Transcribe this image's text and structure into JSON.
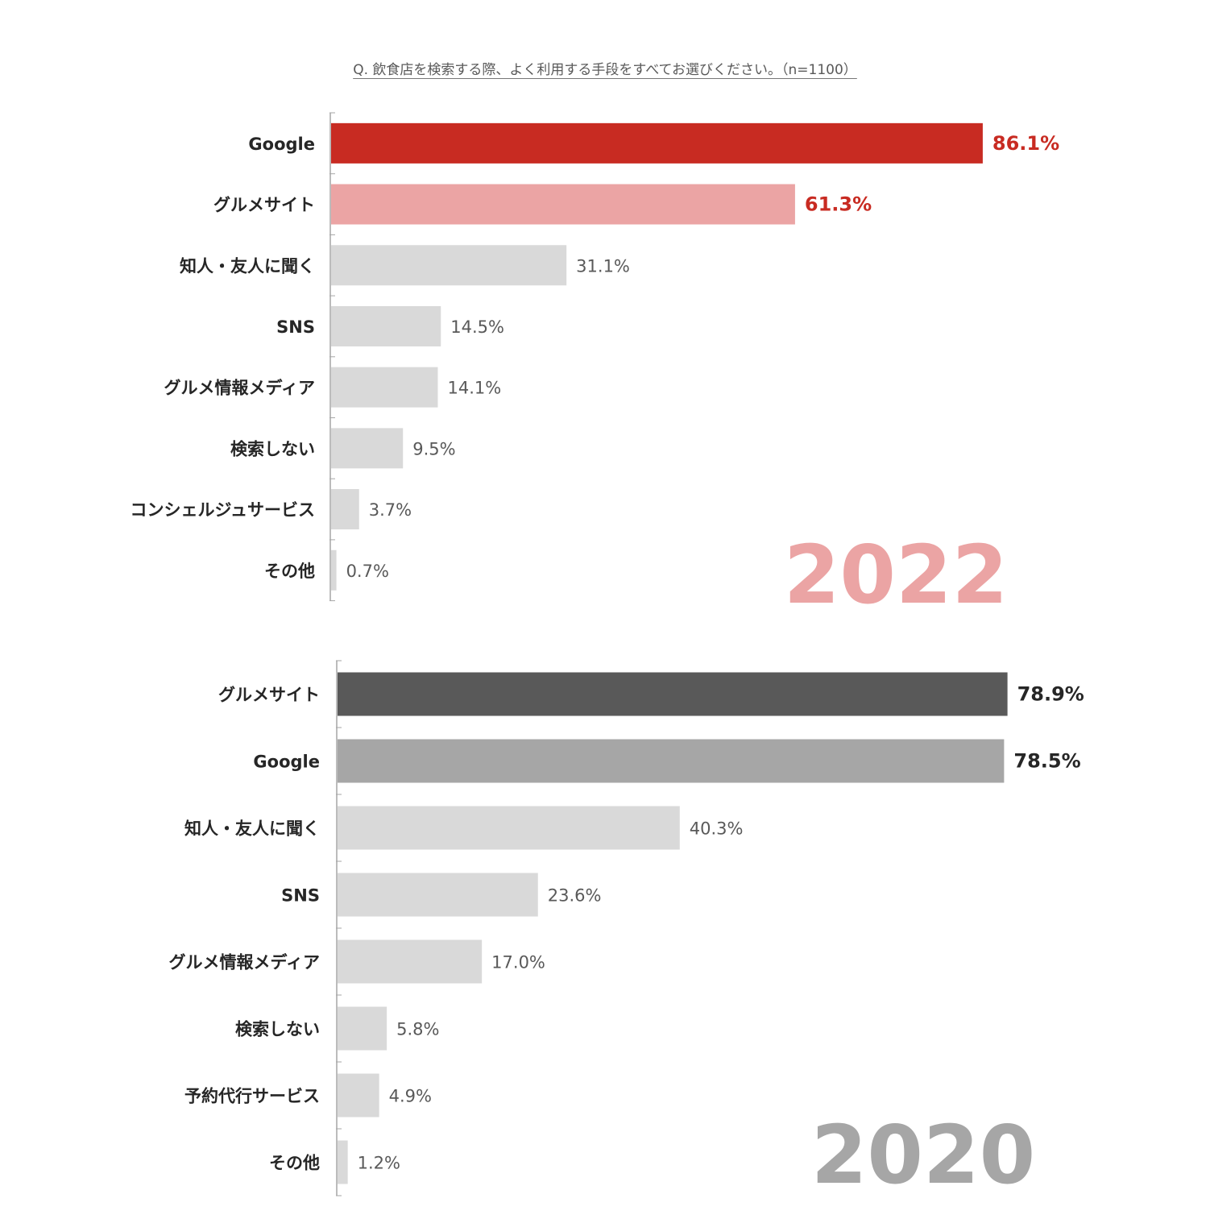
{
  "question": "Q. 飲食店を検索する際、よく利用する手段をすべてお選びください。（n=1100）",
  "chart_data": [
    {
      "type": "bar",
      "orientation": "horizontal",
      "year": "2022",
      "unit": "%",
      "categories": [
        "Google",
        "グルメサイト",
        "知人・友人に聞く",
        "SNS",
        "グルメ情報メディア",
        "検索しない",
        "コンシェルジュサービス",
        "その他"
      ],
      "values": [
        86.1,
        61.3,
        31.1,
        14.5,
        14.1,
        9.5,
        3.7,
        0.7
      ],
      "value_labels": [
        "86.1%",
        "61.3%",
        "31.1%",
        "14.5%",
        "14.1%",
        "9.5%",
        "3.7%",
        "0.7%"
      ],
      "bar_colors": [
        "#c82b22",
        "#eba4a4",
        "#d9d9d9",
        "#d9d9d9",
        "#d9d9d9",
        "#d9d9d9",
        "#d9d9d9",
        "#d9d9d9"
      ],
      "label_colors": [
        "#c82b22",
        "#c82b22",
        "#595959",
        "#595959",
        "#595959",
        "#595959",
        "#595959",
        "#595959"
      ],
      "year_color": "#eba4a4",
      "xlim": [
        0,
        100
      ],
      "grid": false,
      "legend": "none"
    },
    {
      "type": "bar",
      "orientation": "horizontal",
      "year": "2020",
      "unit": "%",
      "categories": [
        "グルメサイト",
        "Google",
        "知人・友人に聞く",
        "SNS",
        "グルメ情報メディア",
        "検索しない",
        "予約代行サービス",
        "その他"
      ],
      "values": [
        78.9,
        78.5,
        40.3,
        23.6,
        17.0,
        5.8,
        4.9,
        1.2
      ],
      "value_labels": [
        "78.9%",
        "78.5%",
        "40.3%",
        "23.6%",
        "17.0%",
        "5.8%",
        "4.9%",
        "1.2%"
      ],
      "bar_colors": [
        "#595959",
        "#a6a6a6",
        "#d9d9d9",
        "#d9d9d9",
        "#d9d9d9",
        "#d9d9d9",
        "#d9d9d9",
        "#d9d9d9"
      ],
      "label_colors": [
        "#262626",
        "#262626",
        "#595959",
        "#595959",
        "#595959",
        "#595959",
        "#595959",
        "#595959"
      ],
      "year_color": "#a6a6a6",
      "xlim": [
        0,
        100
      ],
      "grid": false,
      "legend": "none"
    }
  ]
}
